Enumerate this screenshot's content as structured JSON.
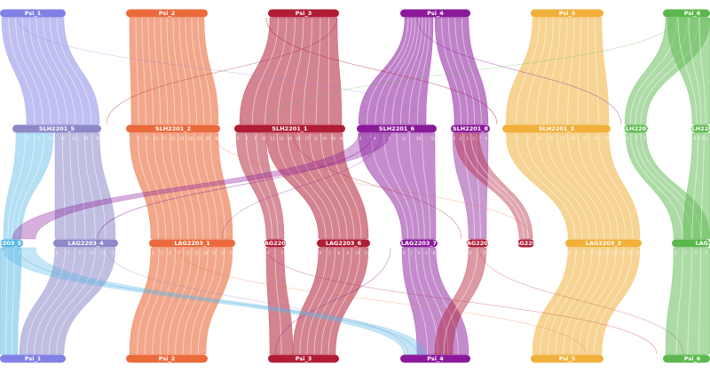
{
  "chromosome_colors": {
    "purple_blue": "#8080e6",
    "orange": "#ea6a3c",
    "crimson": "#b01d35",
    "violet": "#8a1a9a",
    "amber": "#f0b03a",
    "green": "#5cb84e",
    "lavender": "#8d88c8",
    "sky": "#58b8e6"
  },
  "rows": {
    "top": {
      "chromosomes": [
        {
          "label": "Psi_1",
          "color": "#8080e6"
        },
        {
          "label": "Psi_2",
          "color": "#ea6a3c"
        },
        {
          "label": "Psi_3",
          "color": "#b01d35"
        },
        {
          "label": "Psi_4",
          "color": "#8a1a9a"
        },
        {
          "label": "Psi_5",
          "color": "#f0b03a"
        },
        {
          "label": "Psi_6",
          "color": "#5cb84e"
        }
      ]
    },
    "middle": {
      "chromosomes": [
        {
          "label": "SLH2201_5",
          "color": "#8d88c8",
          "ticks": [
            "0",
            "5",
            "9",
            "13",
            "18",
            "22",
            "26",
            "30"
          ]
        },
        {
          "label": "SLH2201_2",
          "color": "#ea6a3c",
          "ticks": [
            "0",
            "5",
            "9",
            "13",
            "17",
            "21",
            "24",
            "28",
            "32",
            "36",
            "38"
          ]
        },
        {
          "label": "SLH2201_1",
          "color": "#b01d35",
          "ticks": [
            "0",
            "3",
            "7",
            "10",
            "13",
            "16",
            "20",
            "24",
            "27",
            "31",
            "34",
            "38",
            "40"
          ]
        },
        {
          "label": "SLH2201_6",
          "color": "#8a1a9a",
          "ticks": [
            "0",
            "4",
            "9",
            "13",
            "18",
            "22"
          ]
        },
        {
          "label": "SLH2201_8",
          "color": "#8a1a9a",
          "ticks": [
            "0",
            "2",
            "3",
            "5",
            "7",
            "9"
          ]
        },
        {
          "label": "SLH2201_3",
          "color": "#f0b03a",
          "ticks": [
            "0",
            "5",
            "9",
            "14",
            "18",
            "22",
            "26",
            "31",
            "35",
            "39"
          ]
        },
        {
          "label": "SLH2201",
          "color": "#5cb84e",
          "ticks": [
            "0",
            "3",
            "5"
          ]
        },
        {
          "label": "SLH2201_4",
          "color": "#5cb84e",
          "ticks": [
            "0",
            "4",
            "8",
            "12"
          ]
        }
      ]
    },
    "lower": {
      "chromosomes": [
        {
          "label": "LAG2203_5",
          "color": "#58b8e6",
          "ticks": [
            "0",
            "2"
          ]
        },
        {
          "label": "LAG2203_4",
          "color": "#8d88c8",
          "ticks": [
            "0",
            "3",
            "6",
            "10",
            "13",
            "16"
          ]
        },
        {
          "label": "LAG2203_1",
          "color": "#ea6a3c",
          "ticks": [
            "0",
            "3",
            "6",
            "9",
            "12",
            "15",
            "18",
            "21",
            "24",
            "28"
          ]
        },
        {
          "label": "LAG2203",
          "color": "#b01d35",
          "ticks": [
            "0",
            "5"
          ]
        },
        {
          "label": "LAG2203_6",
          "color": "#b01d35",
          "ticks": [
            "0",
            "3",
            "6",
            "8",
            "10",
            "13"
          ]
        },
        {
          "label": "LAG2203_7",
          "color": "#8a1a9a",
          "ticks": [
            "0",
            "2",
            "4",
            "6",
            "8"
          ]
        },
        {
          "label": "LAG2203",
          "color": "#b01d35",
          "ticks": [
            "0",
            "3"
          ]
        },
        {
          "label": "LAG2203",
          "color": "#b01d35",
          "ticks": [
            "0",
            "3"
          ]
        },
        {
          "label": "LAG2203_2",
          "color": "#f0b03a",
          "ticks": [
            "0",
            "3",
            "6",
            "9",
            "12",
            "15",
            "18",
            "21",
            "24",
            "27"
          ]
        },
        {
          "label": "LAG2",
          "color": "#5cb84e",
          "ticks": [
            "0",
            "3",
            "6",
            "9"
          ]
        }
      ]
    },
    "bottom": {
      "chromosomes": [
        {
          "label": "Psi_1",
          "color": "#8080e6"
        },
        {
          "label": "Psi_2",
          "color": "#ea6a3c"
        },
        {
          "label": "Psi_3",
          "color": "#b01d35"
        },
        {
          "label": "Psi_4",
          "color": "#8a1a9a"
        },
        {
          "label": "Psi_5",
          "color": "#f0b03a"
        },
        {
          "label": "Psi_6",
          "color": "#5cb84e"
        }
      ]
    }
  }
}
